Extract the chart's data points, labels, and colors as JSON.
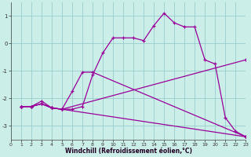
{
  "background_color": "#cceee8",
  "grid_color": "#99cccc",
  "line_color": "#990099",
  "marker": "+",
  "xlabel": "Windchill (Refroidissement éolien,°C)",
  "xlim": [
    0,
    23
  ],
  "ylim": [
    -3.5,
    1.5
  ],
  "yticks": [
    -3,
    -2,
    -1,
    0,
    1
  ],
  "xticks": [
    0,
    1,
    2,
    3,
    4,
    5,
    6,
    7,
    8,
    9,
    10,
    11,
    12,
    13,
    14,
    15,
    16,
    17,
    18,
    19,
    20,
    21,
    22,
    23
  ],
  "series": [
    [
      [
        1,
        -2.3
      ],
      [
        2,
        -2.3
      ],
      [
        3,
        -2.2
      ],
      [
        4,
        -2.35
      ],
      [
        5,
        -2.4
      ],
      [
        6,
        -2.4
      ],
      [
        7,
        -2.3
      ],
      [
        8,
        -1.15
      ],
      [
        9,
        -0.35
      ],
      [
        10,
        0.2
      ],
      [
        11,
        0.2
      ],
      [
        12,
        0.2
      ],
      [
        13,
        0.1
      ],
      [
        14,
        0.65
      ],
      [
        15,
        1.1
      ],
      [
        16,
        0.75
      ],
      [
        17,
        0.6
      ],
      [
        18,
        0.6
      ],
      [
        19,
        -0.6
      ],
      [
        20,
        -0.75
      ],
      [
        21,
        -2.7
      ],
      [
        22,
        -3.2
      ],
      [
        23,
        -3.4
      ]
    ],
    [
      [
        1,
        -2.3
      ],
      [
        2,
        -2.3
      ],
      [
        3,
        -2.1
      ],
      [
        4,
        -2.35
      ],
      [
        5,
        -2.4
      ],
      [
        6,
        -1.75
      ],
      [
        7,
        -1.05
      ],
      [
        8,
        -1.05
      ],
      [
        23,
        -3.4
      ]
    ],
    [
      [
        1,
        -2.3
      ],
      [
        2,
        -2.3
      ],
      [
        3,
        -2.2
      ],
      [
        4,
        -2.35
      ],
      [
        5,
        -2.4
      ],
      [
        23,
        -3.4
      ]
    ],
    [
      [
        1,
        -2.3
      ],
      [
        2,
        -2.3
      ],
      [
        3,
        -2.2
      ],
      [
        4,
        -2.35
      ],
      [
        5,
        -2.4
      ],
      [
        23,
        -0.6
      ]
    ]
  ]
}
